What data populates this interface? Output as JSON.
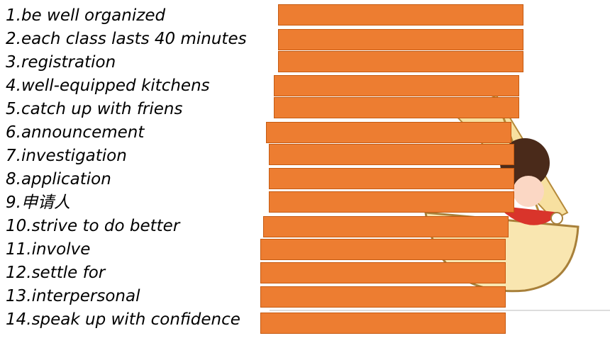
{
  "items": [
    "1.be well organized",
    "2.each class lasts 40 minutes",
    "3.registration",
    "4.well-equipped kitchens",
    "5.catch up with friens",
    "6.announcement",
    "7.investigation",
    "8.application",
    "9.申请人",
    "10.strive to do better",
    "11.involve",
    "12.settle for",
    "13.interpersonal",
    "14.speak up with confidence"
  ]
}
